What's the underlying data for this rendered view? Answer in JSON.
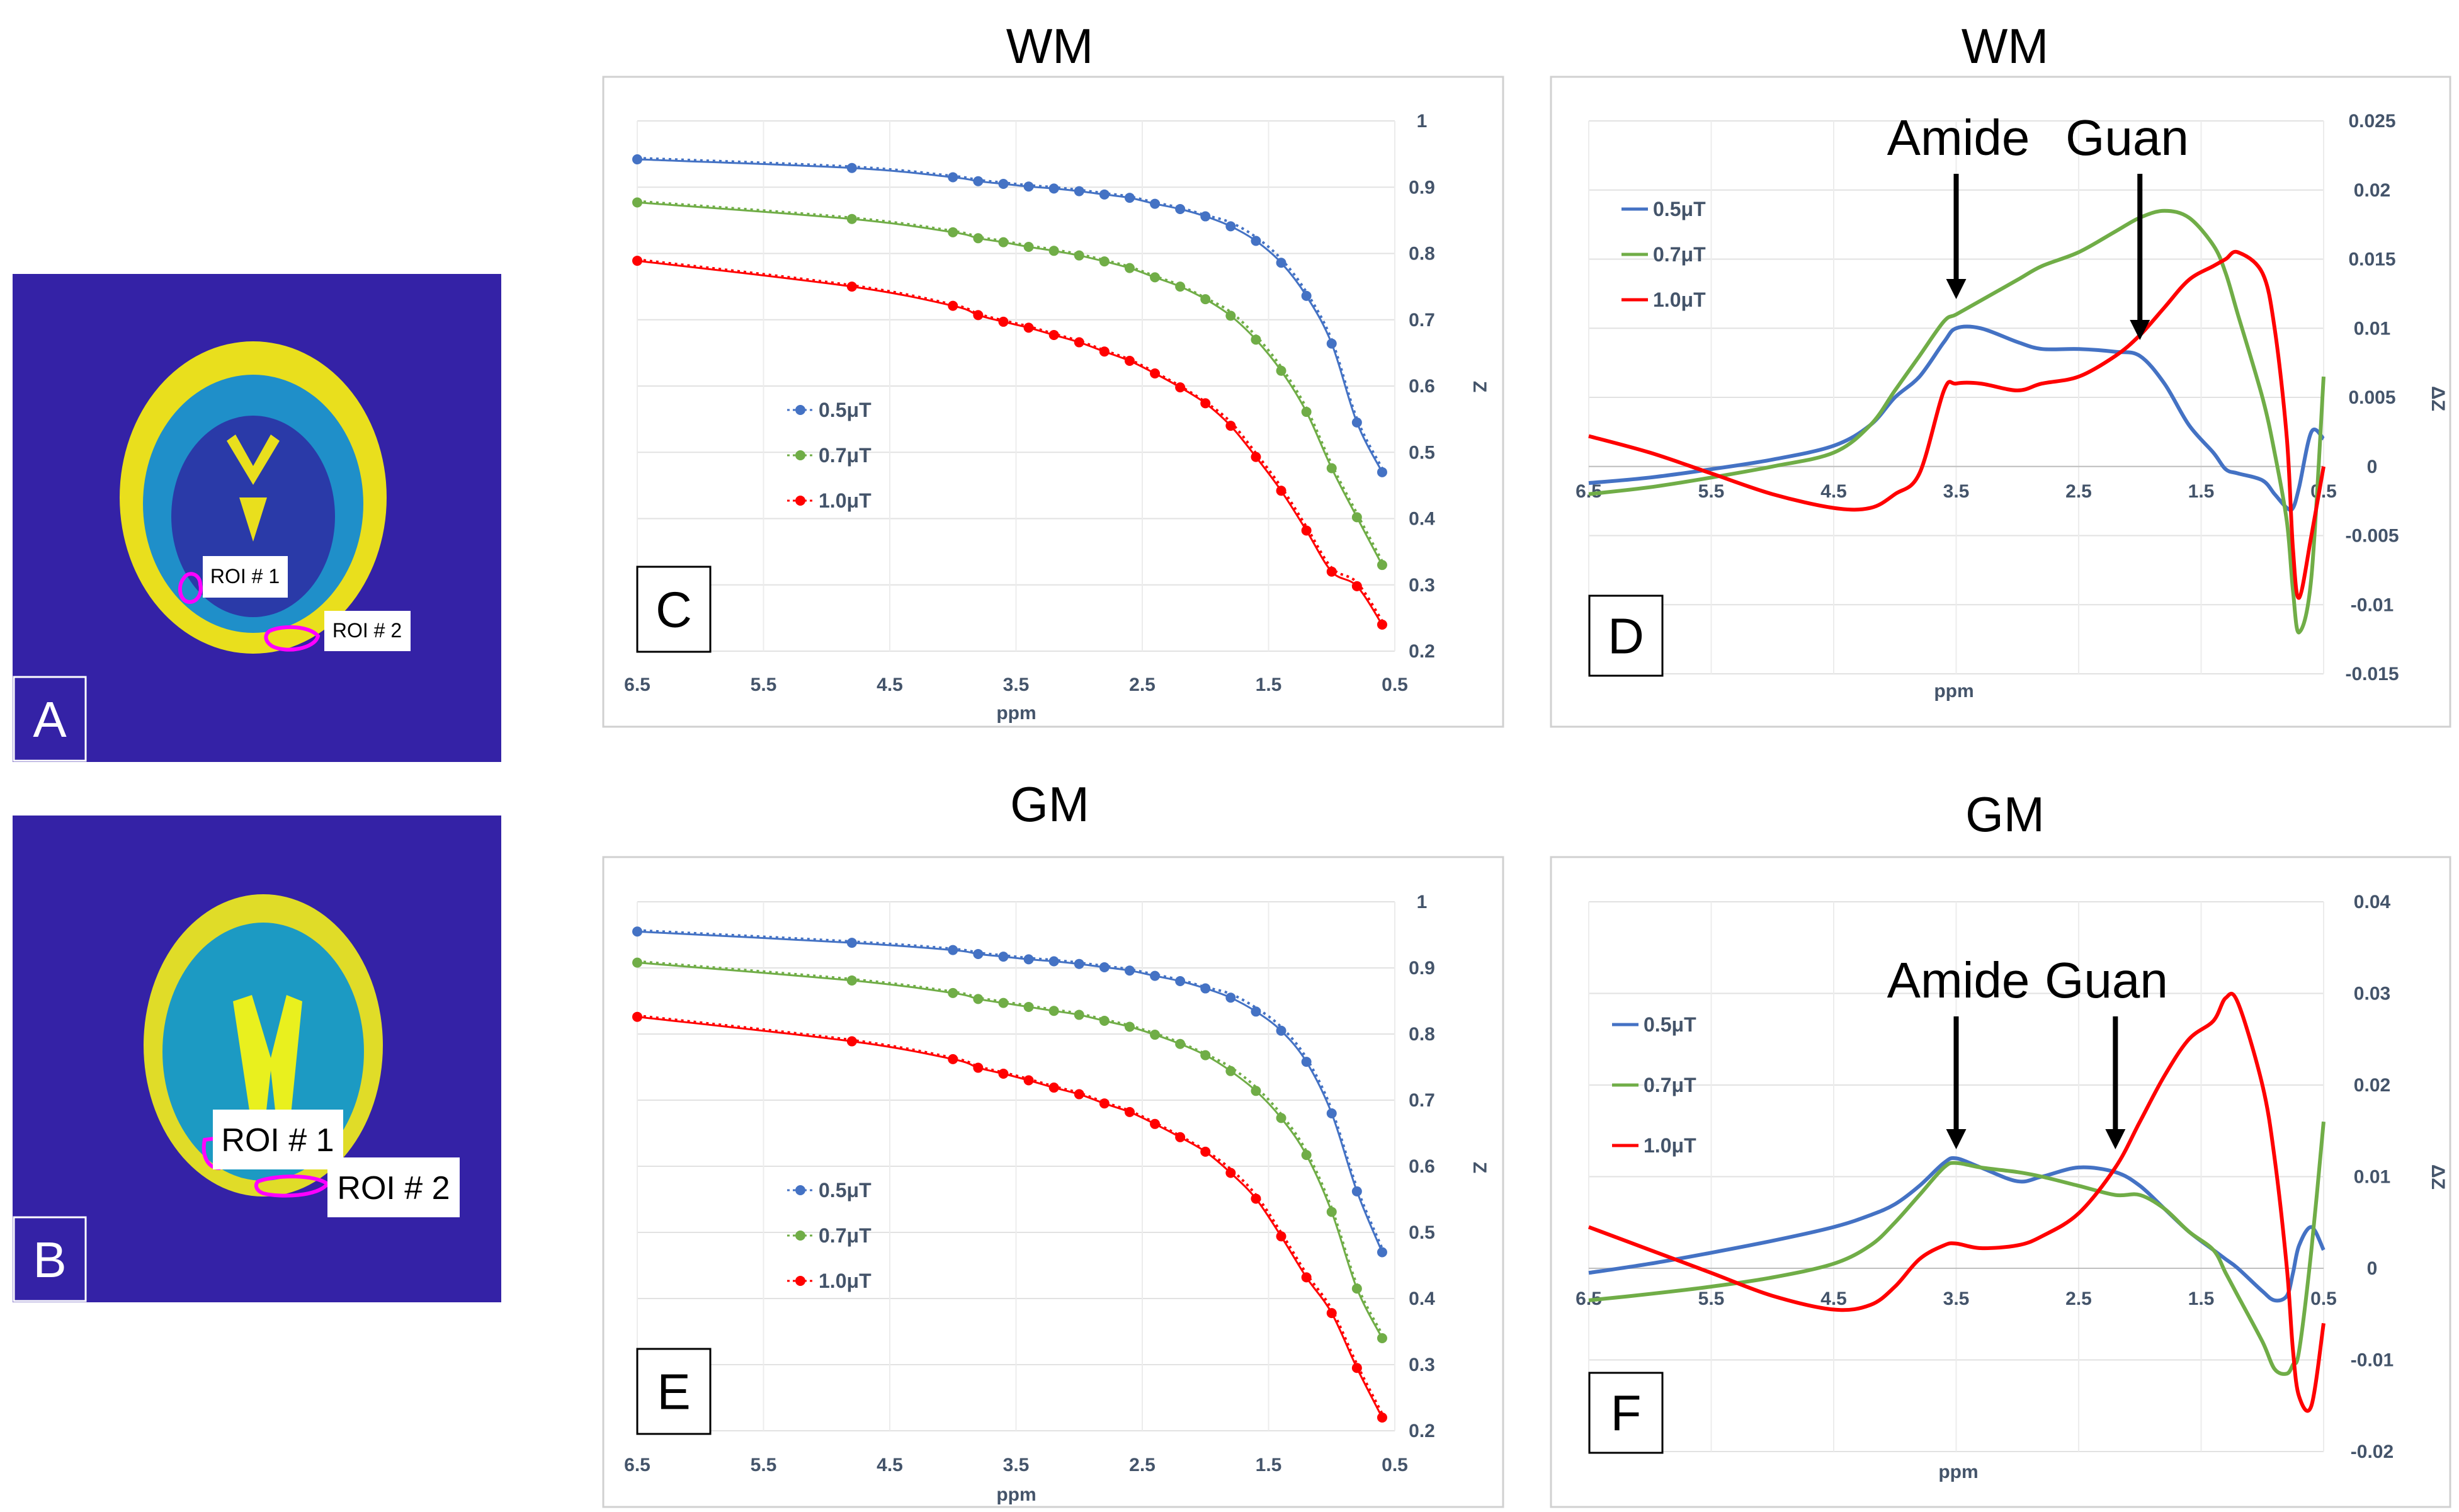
{
  "colors": {
    "c0.5": "#4472c4",
    "c0.7": "#70ad47",
    "c1.0": "#ff0000",
    "brain_bg": "#3422a6",
    "roi": "#ff00ff",
    "axis_text": "#44546a"
  },
  "brain_panels": [
    {
      "label": "A",
      "roi1": "ROI # 1",
      "roi2": "ROI # 2"
    },
    {
      "label": "B",
      "roi1": "ROI # 1",
      "roi2": "ROI # 2"
    }
  ],
  "chart_data": [
    {
      "id": "C",
      "type": "line",
      "title": "WM",
      "panel_label": "C",
      "xlabel": "ppm",
      "ylabel": "Z",
      "xlim": [
        6.5,
        0.5
      ],
      "ylim": [
        0.2,
        1
      ],
      "xticks": [
        "6.5",
        "5.5",
        "4.5",
        "3.5",
        "2.5",
        "1.5",
        "0.5"
      ],
      "yticks": [
        "1",
        "0.9",
        "0.8",
        "0.7",
        "0.6",
        "0.5",
        "0.4",
        "0.3",
        "0.2"
      ],
      "x": [
        6.5,
        4.8,
        4.0,
        3.8,
        3.6,
        3.4,
        3.2,
        3.0,
        2.8,
        2.6,
        2.4,
        2.2,
        2.0,
        1.8,
        1.6,
        1.4,
        1.2,
        1.0,
        0.8,
        0.6
      ],
      "series": [
        {
          "name": "0.5μT",
          "values": [
            0.942,
            0.929,
            0.915,
            0.909,
            0.905,
            0.901,
            0.898,
            0.894,
            0.889,
            0.884,
            0.875,
            0.867,
            0.856,
            0.841,
            0.819,
            0.786,
            0.736,
            0.664,
            0.545,
            0.47
          ]
        },
        {
          "name": "0.7μT",
          "values": [
            0.877,
            0.852,
            0.832,
            0.823,
            0.817,
            0.81,
            0.804,
            0.797,
            0.788,
            0.778,
            0.764,
            0.75,
            0.731,
            0.706,
            0.67,
            0.623,
            0.561,
            0.476,
            0.402,
            0.33
          ]
        },
        {
          "name": "1.0μT",
          "values": [
            0.789,
            0.75,
            0.721,
            0.707,
            0.697,
            0.688,
            0.677,
            0.666,
            0.652,
            0.638,
            0.619,
            0.598,
            0.574,
            0.54,
            0.493,
            0.442,
            0.382,
            0.32,
            0.298,
            0.24
          ]
        }
      ]
    },
    {
      "id": "D",
      "type": "line",
      "title": "WM",
      "panel_label": "D",
      "xlabel": "ppm",
      "ylabel": "ΔZ",
      "xlim": [
        6.5,
        0.5
      ],
      "ylim": [
        -0.015,
        0.025
      ],
      "xticks": [
        "6.5",
        "5.5",
        "4.5",
        "3.5",
        "2.5",
        "1.5",
        "0.5"
      ],
      "yticks": [
        "0.025",
        "0.02",
        "0.015",
        "0.01",
        "0.005",
        "0",
        "-0.005",
        "-0.01",
        "-0.015"
      ],
      "annotations": [
        {
          "text": "Amide",
          "x": 3.5
        },
        {
          "text": "Guan",
          "x": 2.0
        }
      ],
      "x": [
        6.5,
        6.0,
        5.5,
        5.0,
        4.5,
        4.2,
        4.0,
        3.8,
        3.6,
        3.5,
        3.3,
        3.0,
        2.8,
        2.5,
        2.2,
        2.0,
        1.8,
        1.6,
        1.4,
        1.3,
        1.2,
        1.0,
        0.9,
        0.8,
        0.75,
        0.7,
        0.6,
        0.5
      ],
      "series": [
        {
          "name": "0.5μT",
          "values": [
            -0.0012,
            -0.0008,
            -0.0002,
            0.0005,
            0.0015,
            0.003,
            0.005,
            0.0065,
            0.009,
            0.01,
            0.01,
            0.009,
            0.0085,
            0.0085,
            0.0083,
            0.008,
            0.006,
            0.003,
            0.001,
            -0.0002,
            -0.0005,
            -0.001,
            -0.002,
            -0.003,
            -0.003,
            -0.0015,
            0.0025,
            0.002
          ]
        },
        {
          "name": "0.7μT",
          "values": [
            -0.002,
            -0.0015,
            -0.0008,
            0.0,
            0.001,
            0.003,
            0.0055,
            0.008,
            0.0105,
            0.011,
            0.012,
            0.0135,
            0.0145,
            0.0155,
            0.017,
            0.018,
            0.0185,
            0.018,
            0.016,
            0.014,
            0.011,
            0.005,
            0.001,
            -0.004,
            -0.009,
            -0.012,
            -0.008,
            0.0065
          ]
        },
        {
          "name": "1.0μT",
          "values": [
            0.0022,
            0.001,
            -0.0005,
            -0.002,
            -0.003,
            -0.003,
            -0.002,
            -0.0005,
            0.0055,
            0.006,
            0.006,
            0.0055,
            0.006,
            0.0065,
            0.008,
            0.0095,
            0.0115,
            0.0135,
            0.0145,
            0.015,
            0.0155,
            0.014,
            0.01,
            0.002,
            -0.006,
            -0.0095,
            -0.005,
            0.0
          ]
        }
      ]
    },
    {
      "id": "E",
      "type": "line",
      "title": "GM",
      "panel_label": "E",
      "xlabel": "ppm",
      "ylabel": "Z",
      "xlim": [
        6.5,
        0.5
      ],
      "ylim": [
        0.2,
        1
      ],
      "xticks": [
        "6.5",
        "5.5",
        "4.5",
        "3.5",
        "2.5",
        "1.5",
        "0.5"
      ],
      "yticks": [
        "1",
        "0.9",
        "0.8",
        "0.7",
        "0.6",
        "0.5",
        "0.4",
        "0.3",
        "0.2"
      ],
      "x": [
        6.5,
        4.8,
        4.0,
        3.8,
        3.6,
        3.4,
        3.2,
        3.0,
        2.8,
        2.6,
        2.4,
        2.2,
        2.0,
        1.8,
        1.6,
        1.4,
        1.2,
        1.0,
        0.8,
        0.6
      ],
      "series": [
        {
          "name": "0.5μT",
          "values": [
            0.955,
            0.938,
            0.927,
            0.921,
            0.917,
            0.913,
            0.91,
            0.906,
            0.901,
            0.896,
            0.888,
            0.88,
            0.869,
            0.855,
            0.834,
            0.805,
            0.758,
            0.68,
            0.562,
            0.47
          ]
        },
        {
          "name": "0.7μT",
          "values": [
            0.908,
            0.881,
            0.862,
            0.853,
            0.847,
            0.841,
            0.835,
            0.829,
            0.82,
            0.811,
            0.799,
            0.785,
            0.768,
            0.744,
            0.714,
            0.673,
            0.617,
            0.531,
            0.415,
            0.34
          ]
        },
        {
          "name": "1.0μT",
          "values": [
            0.826,
            0.789,
            0.762,
            0.749,
            0.74,
            0.73,
            0.719,
            0.709,
            0.695,
            0.682,
            0.664,
            0.644,
            0.622,
            0.59,
            0.551,
            0.494,
            0.432,
            0.378,
            0.295,
            0.22
          ]
        }
      ]
    },
    {
      "id": "F",
      "type": "line",
      "title": "GM",
      "panel_label": "F",
      "xlabel": "ppm",
      "ylabel": "ΔZ",
      "xlim": [
        6.5,
        0.5
      ],
      "ylim": [
        -0.02,
        0.04
      ],
      "xticks": [
        "6.5",
        "5.5",
        "4.5",
        "3.5",
        "2.5",
        "1.5",
        "0.5"
      ],
      "yticks": [
        "0.04",
        "0.03",
        "0.02",
        "0.01",
        "0",
        "-0.01",
        "-0.02"
      ],
      "annotations": [
        {
          "text": "Amide",
          "x": 3.5
        },
        {
          "text": "Guan",
          "x": 2.2
        }
      ],
      "x": [
        6.5,
        6.0,
        5.5,
        5.0,
        4.5,
        4.2,
        4.0,
        3.8,
        3.6,
        3.5,
        3.3,
        3.0,
        2.8,
        2.5,
        2.2,
        2.0,
        1.8,
        1.6,
        1.4,
        1.3,
        1.2,
        1.0,
        0.9,
        0.8,
        0.75,
        0.7,
        0.6,
        0.5
      ],
      "series": [
        {
          "name": "0.5μT",
          "values": [
            -0.0005,
            0.0005,
            0.0017,
            0.003,
            0.0045,
            0.0058,
            0.007,
            0.009,
            0.0115,
            0.012,
            0.011,
            0.0095,
            0.01,
            0.011,
            0.0105,
            0.009,
            0.0065,
            0.004,
            0.002,
            0.001,
            0.0,
            -0.0025,
            -0.0035,
            -0.003,
            -0.0005,
            0.0025,
            0.0045,
            0.002
          ]
        },
        {
          "name": "0.7μT",
          "values": [
            -0.0035,
            -0.0028,
            -0.002,
            -0.001,
            0.0005,
            0.0025,
            0.005,
            0.008,
            0.011,
            0.0115,
            0.011,
            0.0105,
            0.01,
            0.009,
            0.008,
            0.008,
            0.0065,
            0.004,
            0.002,
            -0.0005,
            -0.003,
            -0.008,
            -0.011,
            -0.0115,
            -0.0105,
            -0.009,
            0.002,
            0.016
          ]
        },
        {
          "name": "1.0μT",
          "values": [
            0.0045,
            0.002,
            -0.0005,
            -0.003,
            -0.0045,
            -0.004,
            -0.002,
            0.001,
            0.0025,
            0.0027,
            0.0022,
            0.0025,
            0.0035,
            0.006,
            0.011,
            0.016,
            0.021,
            0.025,
            0.027,
            0.0295,
            0.029,
            0.02,
            0.012,
            0.0,
            -0.009,
            -0.014,
            -0.015,
            -0.006
          ]
        }
      ]
    }
  ]
}
